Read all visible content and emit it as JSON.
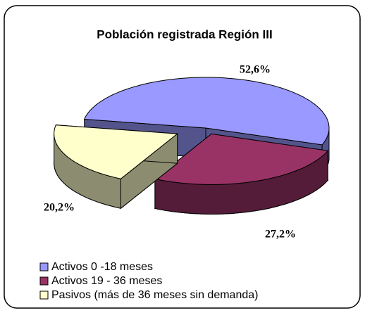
{
  "chart_data": {
    "type": "pie3d",
    "title": "Población registrada Región III",
    "categories": [
      "Activos 0 -18 meses",
      "Activos 19 - 36 meses",
      "Pasivos (más de 36 meses sin demanda)"
    ],
    "values": [
      52.6,
      27.2,
      20.2
    ],
    "value_labels": [
      "52,6%",
      "27,2%",
      "20,2%"
    ],
    "colors": [
      "#9999ff",
      "#993366",
      "#ffffcc"
    ],
    "legend": "bottom-left"
  }
}
